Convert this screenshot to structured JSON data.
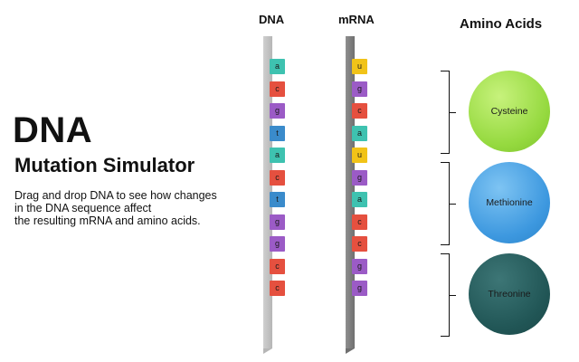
{
  "intro": {
    "title": "DNA",
    "subtitle": "Mutation Simulator",
    "description_lines": [
      "Drag and drop DNA to see how changes",
      "in the DNA sequence affect",
      "the resulting mRNA and amino acids."
    ]
  },
  "headers": {
    "dna": "DNA",
    "mrna": "mRNA",
    "amino_acids": "Amino Acids"
  },
  "dna_bases": [
    "a",
    "c",
    "g",
    "t",
    "a",
    "c",
    "t",
    "g",
    "g",
    "c",
    "c"
  ],
  "mrna_bases": [
    "u",
    "g",
    "c",
    "a",
    "u",
    "g",
    "a",
    "c",
    "c",
    "g",
    "g"
  ],
  "amino_acids": [
    "Cysteine",
    "Methionine",
    "Threonine"
  ],
  "colors": {
    "a": "#3ec2b0",
    "c": "#e5503f",
    "g": "#9b5bc6",
    "t": "#3a8bcb",
    "u": "#f1c318",
    "cysteine": "#95d93f",
    "methionine": "#3d98df",
    "threonine": "#215656"
  }
}
